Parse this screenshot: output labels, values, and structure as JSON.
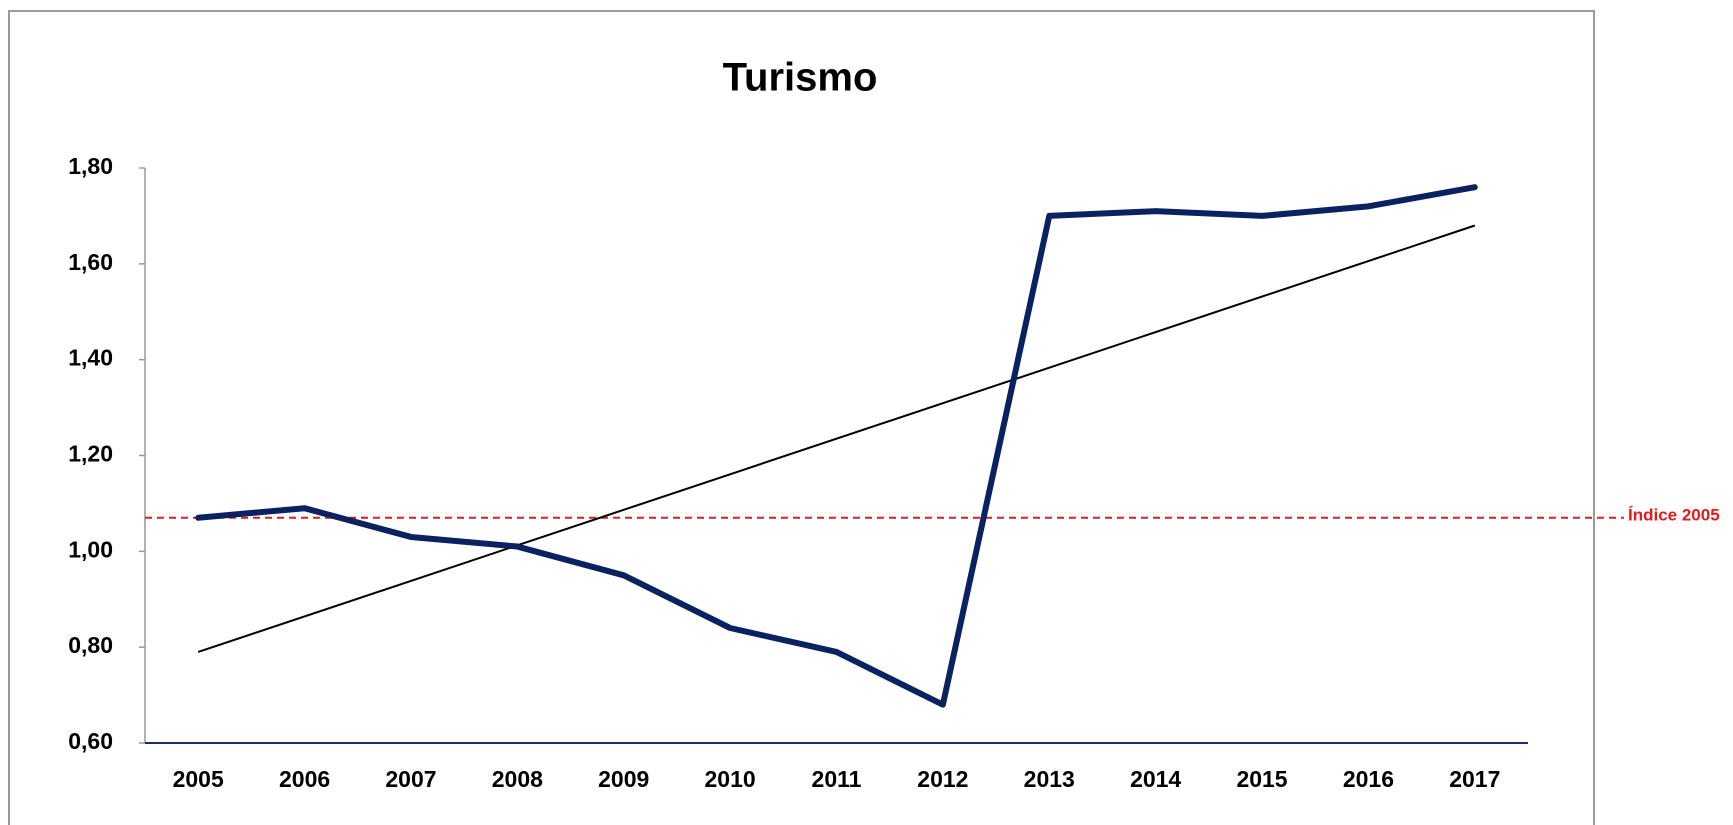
{
  "chart_data": {
    "type": "line",
    "title": "Turismo",
    "categories": [
      "2005",
      "2006",
      "2007",
      "2008",
      "2009",
      "2010",
      "2011",
      "2012",
      "2013",
      "2014",
      "2015",
      "2016",
      "2017"
    ],
    "series": [
      {
        "color": "#0b2260",
        "values": [
          1.07,
          1.09,
          1.03,
          1.01,
          0.95,
          0.84,
          0.79,
          0.68,
          1.7,
          1.71,
          1.7,
          1.72,
          1.76
        ]
      }
    ],
    "trendline": {
      "color": "#000000",
      "values": [
        0.79,
        1.68
      ]
    },
    "reference_line": {
      "label": "Índice 2005",
      "value": 1.07,
      "color": "#e31b1b"
    },
    "ylim": [
      0.6,
      1.8
    ],
    "yticks": [
      {
        "value": 0.6,
        "label": "0,60"
      },
      {
        "value": 0.8,
        "label": "0,80"
      },
      {
        "value": 1.0,
        "label": "1,00"
      },
      {
        "value": 1.2,
        "label": "1,20"
      },
      {
        "value": 1.4,
        "label": "1,40"
      },
      {
        "value": 1.6,
        "label": "1,60"
      },
      {
        "value": 1.8,
        "label": "1,80"
      }
    ],
    "grid": false
  }
}
